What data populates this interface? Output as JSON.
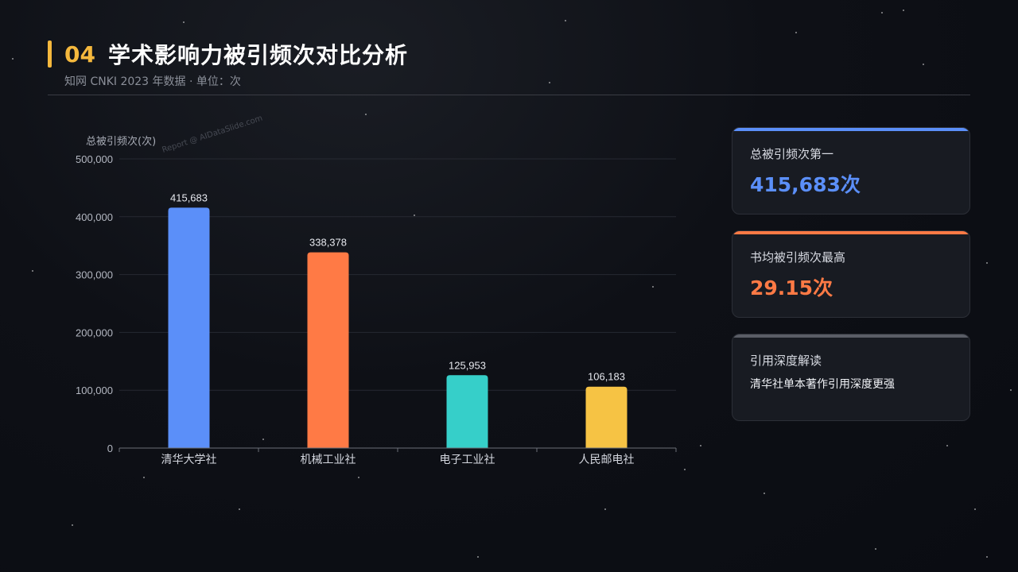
{
  "header": {
    "section_number": "04",
    "title": "学术影响力被引频次对比分析",
    "subtitle": "知网 CNKI 2023 年数据 · 单位：次"
  },
  "watermark": "Report @ AIDataSlide.com",
  "colors": {
    "accent": "#f5b83d",
    "blue": "#5b8ff9",
    "orange": "#ff7a45",
    "teal": "#36cfc9",
    "yellow": "#f6c344",
    "gray": "#5a5d66"
  },
  "chart_data": {
    "type": "bar",
    "categories": [
      "清华大学社",
      "机械工业社",
      "电子工业社",
      "人民邮电社"
    ],
    "values": [
      415683,
      338378,
      125953,
      106183
    ],
    "value_labels": [
      "415,683",
      "338,378",
      "125,953",
      "106,183"
    ],
    "bar_colors": [
      "#5b8ff9",
      "#ff7a45",
      "#36cfc9",
      "#f6c344"
    ],
    "ylabel": "总被引频次(次)",
    "ylim": [
      0,
      500000
    ],
    "yticks": [
      0,
      100000,
      200000,
      300000,
      400000,
      500000
    ],
    "ytick_labels": [
      "0",
      "100,000",
      "200,000",
      "300,000",
      "400,000",
      "500,000"
    ],
    "grid": true
  },
  "cards": [
    {
      "label": "总被引频次第一",
      "value": "415,683次",
      "color": "#5b8ff9"
    },
    {
      "label": "书均被引频次最高",
      "value": "29.15次",
      "color": "#ff7a45"
    },
    {
      "label": "引用深度解读",
      "text": "清华社单本著作引用深度更强",
      "color": "#5a5d66"
    }
  ]
}
